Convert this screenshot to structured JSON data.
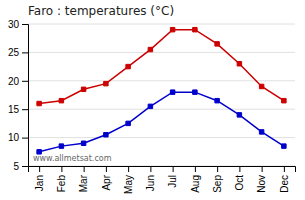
{
  "chart_data": {
    "type": "line",
    "title": "Faro : temperatures (°C)",
    "categories": [
      "Jan",
      "Feb",
      "Mar",
      "Apr",
      "May",
      "Jun",
      "Jul",
      "Aug",
      "Sep",
      "Oct",
      "Nov",
      "Dec"
    ],
    "series": [
      {
        "color": "#cc0000",
        "marker": "square",
        "values": [
          16.0,
          16.5,
          18.5,
          19.5,
          22.5,
          25.5,
          29.0,
          29.0,
          26.5,
          23.0,
          19.0,
          16.5
        ]
      },
      {
        "color": "#0000cc",
        "marker": "square",
        "values": [
          7.5,
          8.5,
          9.0,
          10.5,
          12.5,
          15.5,
          18.0,
          18.0,
          16.5,
          14.0,
          11.0,
          8.5
        ]
      }
    ],
    "ylim": [
      5,
      30
    ],
    "yticks": [
      5,
      10,
      15,
      20,
      25,
      30
    ],
    "grid": true,
    "annotations": [
      "www.allmetsat.com"
    ]
  }
}
